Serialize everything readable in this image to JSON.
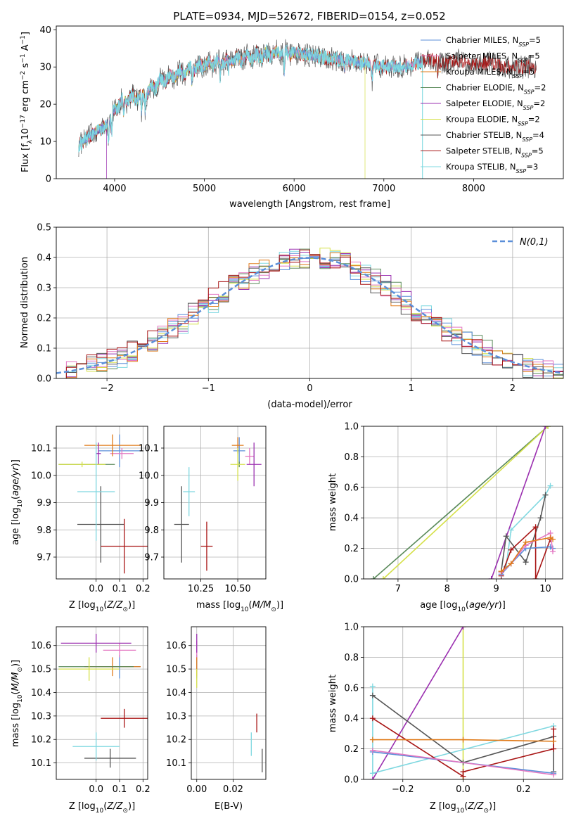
{
  "figure_title": "PLATE=0934, MJD=52672, FIBERID=0154, z=0.052",
  "colors": {
    "Chabrier MILES": "#5b8fd9",
    "Salpeter MILES": "#e377c2",
    "Kroupa MILES": "#e07b1a",
    "Chabrier ELODIE": "#5a8a5a",
    "Salpeter ELODIE": "#9b30b0",
    "Kroupa ELODIE": "#d5e048",
    "Chabrier STELIB": "#555555",
    "Salpeter STELIB": "#a81414",
    "Kroupa STELIB": "#7fd8e0",
    "normal": "#5b8fd9"
  },
  "legend": [
    {
      "name": "Chabrier MILES",
      "base": "Chabrier MILES, N",
      "n": "=5"
    },
    {
      "name": "Salpeter MILES",
      "base": "Salpeter MILES, N",
      "n": "=5"
    },
    {
      "name": "Kroupa MILES",
      "base": "Kroupa MILES, N",
      "n": "=5"
    },
    {
      "name": "Chabrier ELODIE",
      "base": "Chabrier ELODIE, N",
      "n": "=2"
    },
    {
      "name": "Salpeter ELODIE",
      "base": "Salpeter ELODIE, N",
      "n": "=2"
    },
    {
      "name": "Kroupa ELODIE",
      "base": "Kroupa ELODIE, N",
      "n": "=2"
    },
    {
      "name": "Chabrier STELIB",
      "base": "Chabrier STELIB, N",
      "n": "=4"
    },
    {
      "name": "Salpeter STELIB",
      "base": "Salpeter STELIB, N",
      "n": "=5"
    },
    {
      "name": "Kroupa STELIB",
      "base": "Kroupa STELIB, N",
      "n": "=3"
    }
  ],
  "legend_sub": "SSP",
  "chart_data": [
    {
      "id": "spectrum",
      "type": "line",
      "xlabel": "wavelength [Angstrom, rest frame]",
      "ylabel": "Flux [f_λ 10^-17 erg cm^-2 s^-1 A^-1]",
      "xlim": [
        3350,
        9000
      ],
      "ylim": [
        0,
        41
      ],
      "xticks": [
        4000,
        5000,
        6000,
        7000,
        8000
      ],
      "yticks": [
        0,
        10,
        20,
        30,
        40
      ],
      "legend_position": "upper right",
      "grid": false,
      "continuum": [
        [
          3600,
          9
        ],
        [
          3700,
          11
        ],
        [
          3800,
          13
        ],
        [
          3900,
          14
        ],
        [
          3950,
          16
        ],
        [
          4000,
          19
        ],
        [
          4100,
          21
        ],
        [
          4300,
          22
        ],
        [
          4400,
          24
        ],
        [
          4500,
          26
        ],
        [
          4700,
          28
        ],
        [
          4900,
          30
        ],
        [
          5100,
          31
        ],
        [
          5300,
          32
        ],
        [
          5600,
          33
        ],
        [
          5900,
          34
        ],
        [
          6200,
          33
        ],
        [
          6500,
          32
        ],
        [
          6800,
          31
        ],
        [
          7000,
          30
        ],
        [
          7200,
          30
        ],
        [
          7500,
          32
        ],
        [
          7700,
          31
        ],
        [
          7800,
          32
        ],
        [
          8000,
          31
        ],
        [
          8200,
          31
        ],
        [
          8400,
          30
        ],
        [
          8600,
          30
        ],
        [
          8700,
          30
        ]
      ],
      "absorption": [
        [
          3934,
          6
        ],
        [
          3968,
          5
        ],
        [
          4101,
          4
        ],
        [
          4300,
          5
        ],
        [
          4340,
          4
        ],
        [
          4861,
          4
        ],
        [
          5175,
          4
        ],
        [
          5270,
          3
        ],
        [
          5890,
          6
        ],
        [
          6563,
          3
        ],
        [
          6870,
          4
        ],
        [
          7600,
          3
        ]
      ],
      "dropouts": [
        {
          "series": "Kroupa ELODIE",
          "x": 6790
        },
        {
          "series": "Kroupa MILES",
          "x": 7420
        },
        {
          "series": "Kroupa STELIB",
          "x": 7430
        },
        {
          "series": "Salpeter ELODIE",
          "x": 3910
        }
      ]
    },
    {
      "id": "residuals",
      "type": "step",
      "xlabel": "(data-model)/error",
      "ylabel": "Normed distribution",
      "xlim": [
        -2.5,
        2.5
      ],
      "ylim": [
        0,
        0.5
      ],
      "xticks": [
        -2,
        -1,
        0,
        1,
        2
      ],
      "yticks": [
        0.0,
        0.1,
        0.2,
        0.3,
        0.4,
        0.5
      ],
      "grid": true,
      "bin_width": 0.1,
      "legend_label": "N(0,1)",
      "legend_position": "upper right"
    },
    {
      "id": "age_vs_Z",
      "type": "errorbar",
      "xlabel": "Z [log10(Z/Z☉)]",
      "ylabel": "age [log10(age/yr)]",
      "xlim": [
        -0.17,
        0.22
      ],
      "ylim": [
        9.62,
        10.18
      ],
      "xticks": [
        0.0,
        0.1,
        0.2
      ],
      "yticks": [
        9.7,
        9.8,
        9.9,
        10.0,
        10.1
      ],
      "grid": true,
      "points": [
        {
          "series": "Chabrier MILES",
          "x": 0.1,
          "xerr": 0.09,
          "y": 10.09,
          "yerr": 0.06
        },
        {
          "series": "Salpeter MILES",
          "x": 0.11,
          "xerr": 0.05,
          "y": 10.08,
          "yerr": 0.02
        },
        {
          "series": "Kroupa MILES",
          "x": 0.07,
          "xerr": 0.12,
          "y": 10.11,
          "yerr": 0.04
        },
        {
          "series": "Chabrier ELODIE",
          "x": -0.04,
          "xerr": 0.12,
          "y": 10.04,
          "yerr": 0.0
        },
        {
          "series": "Salpeter ELODIE",
          "x": 0.01,
          "xerr": 0.01,
          "y": 10.08,
          "yerr": 0.04
        },
        {
          "series": "Kroupa ELODIE",
          "x": -0.06,
          "xerr": 0.1,
          "y": 10.04,
          "yerr": 0.01
        },
        {
          "series": "Chabrier STELIB",
          "x": 0.02,
          "xerr": 0.1,
          "y": 9.82,
          "yerr": 0.14
        },
        {
          "series": "Salpeter STELIB",
          "x": 0.12,
          "xerr": 0.1,
          "y": 9.74,
          "yerr": 0.1
        },
        {
          "series": "Kroupa STELIB",
          "x": 0.0,
          "xerr": 0.08,
          "y": 9.94,
          "yerr": 0.18
        }
      ]
    },
    {
      "id": "age_vs_mass",
      "type": "errorbar",
      "xlabel": "mass [log10(M/M☉)]",
      "ylabel": "",
      "xlim": [
        10.0,
        10.69
      ],
      "ylim": [
        9.62,
        10.18
      ],
      "xticks": [
        10.25,
        10.5
      ],
      "yticks": [
        9.7,
        9.8,
        9.9,
        10.0,
        10.1
      ],
      "grid": true,
      "points": [
        {
          "series": "Chabrier MILES",
          "x": 10.51,
          "xerr": 0.04,
          "y": 10.09,
          "yerr": 0.05
        },
        {
          "series": "Salpeter MILES",
          "x": 10.58,
          "xerr": 0.03,
          "y": 10.07,
          "yerr": 0.03
        },
        {
          "series": "Kroupa MILES",
          "x": 10.5,
          "xerr": 0.04,
          "y": 10.11,
          "yerr": 0.03
        },
        {
          "series": "Chabrier ELODIE",
          "x": 10.51,
          "xerr": 0.0,
          "y": 10.04,
          "yerr": 0.01
        },
        {
          "series": "Salpeter ELODIE",
          "x": 10.61,
          "xerr": 0.05,
          "y": 10.04,
          "yerr": 0.08
        },
        {
          "series": "Kroupa ELODIE",
          "x": 10.5,
          "xerr": 0.05,
          "y": 10.04,
          "yerr": 0.06
        },
        {
          "series": "Chabrier STELIB",
          "x": 10.12,
          "xerr": 0.05,
          "y": 9.82,
          "yerr": 0.14
        },
        {
          "series": "Salpeter STELIB",
          "x": 10.29,
          "xerr": 0.04,
          "y": 9.74,
          "yerr": 0.09
        },
        {
          "series": "Kroupa STELIB",
          "x": 10.17,
          "xerr": 0.04,
          "y": 9.94,
          "yerr": 0.09
        }
      ]
    },
    {
      "id": "weight_vs_age",
      "type": "line",
      "xlabel": "age [log10(age/yr)]",
      "ylabel": "mass weight",
      "xlim": [
        6.3,
        10.35
      ],
      "ylim": [
        0,
        1.0
      ],
      "xticks": [
        7,
        8,
        9,
        10
      ],
      "yticks": [
        0.0,
        0.2,
        0.4,
        0.6,
        0.8,
        1.0
      ],
      "grid": true,
      "series": [
        {
          "name": "Chabrier ELODIE",
          "x": [
            6.5,
            10.05
          ],
          "y": [
            0.0,
            1.0
          ]
        },
        {
          "name": "Kroupa ELODIE",
          "x": [
            6.7,
            10.05
          ],
          "y": [
            0.0,
            1.0
          ]
        },
        {
          "name": "Salpeter ELODIE",
          "x": [
            8.9,
            10.0
          ],
          "y": [
            0.0,
            1.0
          ]
        },
        {
          "name": "Kroupa STELIB",
          "x": [
            9.1,
            9.2,
            9.3,
            10.0,
            10.1
          ],
          "y": [
            0.04,
            0.08,
            0.32,
            0.55,
            0.61
          ]
        },
        {
          "name": "Chabrier STELIB",
          "x": [
            9.1,
            9.2,
            9.6,
            9.9,
            10.0
          ],
          "y": [
            0.05,
            0.28,
            0.11,
            0.4,
            0.55
          ]
        },
        {
          "name": "Salpeter STELIB",
          "x": [
            9.1,
            9.3,
            9.8,
            9.8,
            10.1
          ],
          "y": [
            0.02,
            0.19,
            0.34,
            0.0,
            0.26
          ]
        },
        {
          "name": "Chabrier MILES",
          "x": [
            9.1,
            9.3,
            9.6,
            10.1,
            10.15
          ],
          "y": [
            0.03,
            0.1,
            0.2,
            0.21,
            0.2
          ]
        },
        {
          "name": "Salpeter MILES",
          "x": [
            9.1,
            9.3,
            9.6,
            10.1,
            10.15
          ],
          "y": [
            0.04,
            0.1,
            0.22,
            0.3,
            0.18
          ]
        },
        {
          "name": "Kroupa MILES",
          "x": [
            9.1,
            9.3,
            9.6,
            10.1,
            10.15
          ],
          "y": [
            0.05,
            0.1,
            0.24,
            0.27,
            0.26
          ]
        }
      ]
    },
    {
      "id": "mass_vs_Z",
      "type": "errorbar",
      "xlabel": "Z [log10(Z/Z☉)]",
      "ylabel": "mass [log10(M/M☉)]",
      "xlim": [
        -0.17,
        0.22
      ],
      "ylim": [
        10.03,
        10.68
      ],
      "xticks": [
        0.0,
        0.1,
        0.2
      ],
      "yticks": [
        10.1,
        10.2,
        10.3,
        10.4,
        10.5,
        10.6
      ],
      "grid": true,
      "points": [
        {
          "series": "Chabrier MILES",
          "x": 0.1,
          "xerr": 0.09,
          "y": 10.51,
          "yerr": 0.05
        },
        {
          "series": "Salpeter MILES",
          "x": 0.1,
          "xerr": 0.07,
          "y": 10.58,
          "yerr": 0.03
        },
        {
          "series": "Kroupa MILES",
          "x": 0.07,
          "xerr": 0.12,
          "y": 10.51,
          "yerr": 0.04
        },
        {
          "series": "Chabrier ELODIE",
          "x": 0.0,
          "xerr": 0.16,
          "y": 10.51,
          "yerr": 0.0
        },
        {
          "series": "Salpeter ELODIE",
          "x": 0.0,
          "xerr": 0.15,
          "y": 10.61,
          "yerr": 0.04
        },
        {
          "series": "Kroupa ELODIE",
          "x": -0.03,
          "xerr": 0.13,
          "y": 10.5,
          "yerr": 0.05
        },
        {
          "series": "Chabrier STELIB",
          "x": 0.06,
          "xerr": 0.11,
          "y": 10.12,
          "yerr": 0.04
        },
        {
          "series": "Salpeter STELIB",
          "x": 0.12,
          "xerr": 0.1,
          "y": 10.29,
          "yerr": 0.04
        },
        {
          "series": "Kroupa STELIB",
          "x": 0.0,
          "xerr": 0.1,
          "y": 10.17,
          "yerr": 0.06
        }
      ]
    },
    {
      "id": "mass_vs_ebv",
      "type": "errorbar",
      "xlabel": "E(B-V)",
      "ylabel": "",
      "xlim": [
        -0.003,
        0.038
      ],
      "ylim": [
        10.03,
        10.68
      ],
      "xticks": [
        0.0,
        0.02
      ],
      "yticks": [
        10.1,
        10.2,
        10.3,
        10.4,
        10.5,
        10.6
      ],
      "grid": true,
      "points": [
        {
          "series": "Chabrier MILES",
          "x": 0.0,
          "xerr": 0.0,
          "y": 10.51,
          "yerr": 0.05
        },
        {
          "series": "Salpeter MILES",
          "x": 0.0,
          "xerr": 0.0,
          "y": 10.58,
          "yerr": 0.04
        },
        {
          "series": "Kroupa MILES",
          "x": 0.0,
          "xerr": 0.0,
          "y": 10.51,
          "yerr": 0.04
        },
        {
          "series": "Chabrier ELODIE",
          "x": 0.0,
          "xerr": 0.0,
          "y": 10.51,
          "yerr": 0.0
        },
        {
          "series": "Salpeter ELODIE",
          "x": 0.0,
          "xerr": 0.0,
          "y": 10.61,
          "yerr": 0.04
        },
        {
          "series": "Kroupa ELODIE",
          "x": 0.0,
          "xerr": 0.0,
          "y": 10.46,
          "yerr": 0.04
        },
        {
          "series": "Chabrier STELIB",
          "x": 0.036,
          "xerr": 0.0,
          "y": 10.11,
          "yerr": 0.05
        },
        {
          "series": "Salpeter STELIB",
          "x": 0.033,
          "xerr": 0.0,
          "y": 10.27,
          "yerr": 0.04
        },
        {
          "series": "Kroupa STELIB",
          "x": 0.03,
          "xerr": 0.0,
          "y": 10.18,
          "yerr": 0.05
        }
      ]
    },
    {
      "id": "weight_vs_Z",
      "type": "line",
      "xlabel": "Z [log10(Z/Z☉)]",
      "ylabel": "mass weight",
      "xlim": [
        -0.33,
        0.33
      ],
      "ylim": [
        0,
        1.0
      ],
      "xticks": [
        -0.2,
        0.0,
        0.2
      ],
      "yticks": [
        0.0,
        0.2,
        0.4,
        0.6,
        0.8,
        1.0
      ],
      "grid": true,
      "series": [
        {
          "name": "Kroupa ELODIE",
          "x": [
            0.0,
            0.0
          ],
          "y": [
            0.0,
            1.0
          ]
        },
        {
          "name": "Salpeter ELODIE",
          "x": [
            -0.3,
            0.0
          ],
          "y": [
            0.0,
            1.0
          ]
        },
        {
          "name": "Kroupa STELIB",
          "x": [
            -0.3,
            -0.3,
            0.3
          ],
          "y": [
            0.61,
            0.04,
            0.35
          ]
        },
        {
          "name": "Chabrier STELIB",
          "x": [
            -0.3,
            0.0,
            0.3,
            0.3
          ],
          "y": [
            0.55,
            0.11,
            0.28,
            0.05
          ]
        },
        {
          "name": "Salpeter STELIB",
          "x": [
            -0.3,
            0.0,
            0.0,
            0.3,
            0.3
          ],
          "y": [
            0.4,
            0.02,
            0.05,
            0.2,
            0.33
          ]
        },
        {
          "name": "Kroupa MILES",
          "x": [
            -0.3,
            0.0,
            0.3
          ],
          "y": [
            0.26,
            0.26,
            0.25
          ]
        },
        {
          "name": "Chabrier MILES",
          "x": [
            -0.3,
            0.3
          ],
          "y": [
            0.18,
            0.04
          ]
        },
        {
          "name": "Salpeter MILES",
          "x": [
            -0.3,
            0.3
          ],
          "y": [
            0.19,
            0.03
          ]
        }
      ]
    }
  ]
}
